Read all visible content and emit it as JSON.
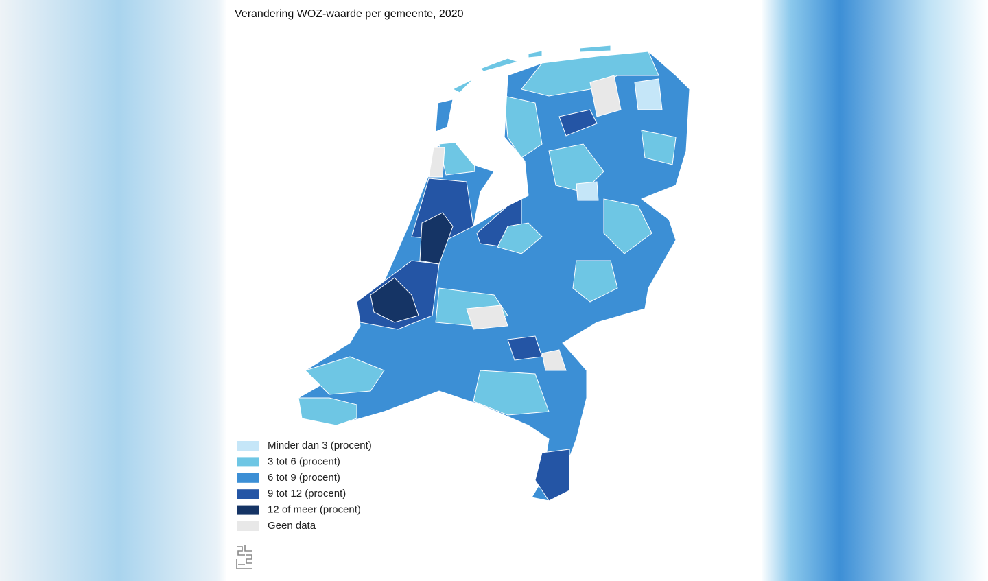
{
  "title": "Verandering WOZ-waarde per gemeente, 2020",
  "legend": {
    "items": [
      {
        "label": "Minder dan 3 (procent)",
        "color": "#c5e6f8"
      },
      {
        "label": "3 tot 6 (procent)",
        "color": "#6ec6e4"
      },
      {
        "label": "6 tot 9 (procent)",
        "color": "#3c8fd5"
      },
      {
        "label": "9 tot 12 (procent)",
        "color": "#2455a5"
      },
      {
        "label": "12 of meer (procent)",
        "color": "#153465"
      },
      {
        "label": "Geen data",
        "color": "#e8e8e8"
      }
    ]
  }
}
